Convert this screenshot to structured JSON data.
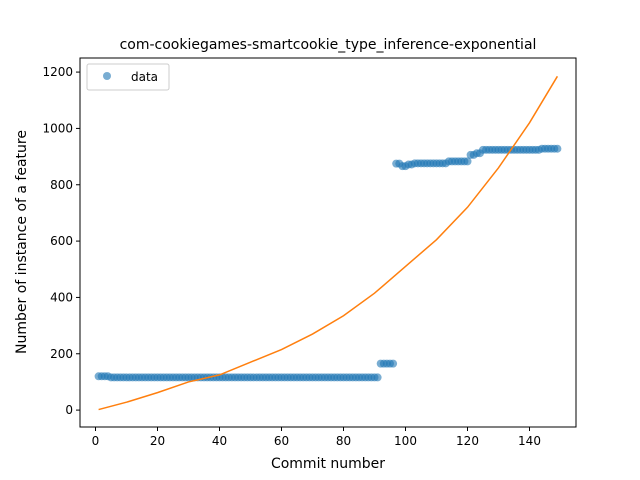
{
  "chart_data": {
    "type": "scatter",
    "title": "com-cookiegames-smartcookie_type_inference-exponential",
    "xlabel": "Commit number",
    "ylabel": "Number of instance of a feature",
    "xlim": [
      -5,
      155
    ],
    "ylim": [
      -60,
      1250
    ],
    "xticks": [
      0,
      20,
      40,
      60,
      80,
      100,
      120,
      140
    ],
    "yticks": [
      0,
      200,
      400,
      600,
      800,
      1000,
      1200
    ],
    "grid": false,
    "legend": {
      "placement": "upper-left",
      "entries": [
        "data"
      ]
    },
    "colors": {
      "data": "#1f77b4",
      "fit": "#ff7f0e"
    },
    "series": [
      {
        "name": "data",
        "kind": "scatter",
        "segments": [
          {
            "x_start": 1,
            "x_end": 4,
            "y": 120
          },
          {
            "x_start": 5,
            "x_end": 91,
            "y": 116
          },
          {
            "x_start": 92,
            "x_end": 96,
            "y": 165
          },
          {
            "x_start": 97,
            "x_end": 98,
            "y": 875
          },
          {
            "x_start": 99,
            "x_end": 100,
            "y": 866
          },
          {
            "x_start": 101,
            "x_end": 102,
            "y": 872
          },
          {
            "x_start": 103,
            "x_end": 113,
            "y": 876
          },
          {
            "x_start": 114,
            "x_end": 120,
            "y": 883
          },
          {
            "x_start": 121,
            "x_end": 122,
            "y": 906
          },
          {
            "x_start": 123,
            "x_end": 124,
            "y": 912
          },
          {
            "x_start": 125,
            "x_end": 143,
            "y": 924
          },
          {
            "x_start": 144,
            "x_end": 149,
            "y": 928
          }
        ]
      },
      {
        "name": "",
        "kind": "line",
        "x": [
          1,
          10,
          20,
          30,
          40,
          50,
          60,
          70,
          80,
          90,
          100,
          110,
          120,
          130,
          140,
          149
        ],
        "y": [
          2,
          28,
          62,
          100,
          125,
          170,
          215,
          270,
          335,
          415,
          510,
          605,
          720,
          860,
          1020,
          1185
        ]
      }
    ]
  }
}
